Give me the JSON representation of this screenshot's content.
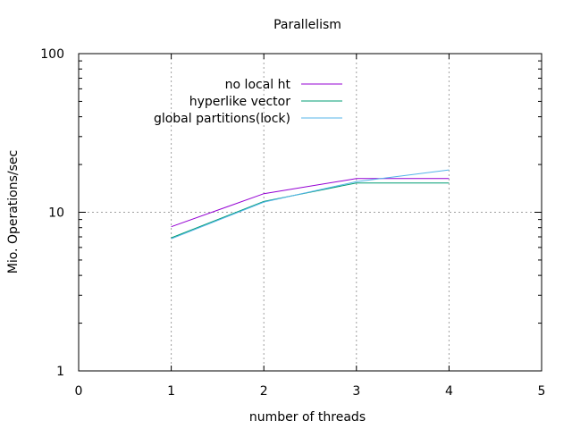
{
  "chart_data": {
    "type": "line",
    "title": "Parallelism",
    "xlabel": "number of threads",
    "ylabel": "Mio. Operations/sec",
    "xlim": [
      0,
      5
    ],
    "ylim": [
      1,
      100
    ],
    "y_scale": "log",
    "grid": true,
    "legend_position": "top-center",
    "x_ticks": [
      "0",
      "1",
      "2",
      "3",
      "4",
      "5"
    ],
    "y_ticks": [
      "1",
      "10",
      "100"
    ],
    "series": [
      {
        "name": "no local ht",
        "color": "#9400d3",
        "x": [
          1,
          2,
          3,
          4
        ],
        "y": [
          8.1,
          13.1,
          16.3,
          16.3
        ]
      },
      {
        "name": "hyperlike vector",
        "color": "#009e73",
        "x": [
          1,
          2,
          3,
          4
        ],
        "y": [
          6.9,
          11.7,
          15.3,
          15.3
        ]
      },
      {
        "name": "global partitions(lock)",
        "color": "#56b4e9",
        "x": [
          1,
          2,
          3,
          4
        ],
        "y": [
          6.8,
          11.6,
          15.6,
          18.5
        ]
      }
    ]
  }
}
